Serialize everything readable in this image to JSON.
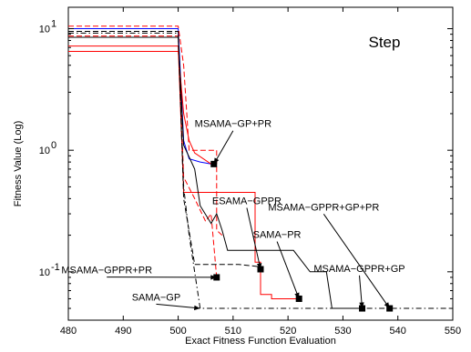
{
  "chart_data": {
    "type": "line",
    "title": "",
    "xlabel": "Exact Fitness Function Evaluation",
    "ylabel": "Fitness Value (Log)",
    "xlim": [
      480,
      550
    ],
    "ylim": [
      0.04,
      15
    ],
    "yscale": "log",
    "grid": false,
    "legend": "none",
    "x_ticks": [
      "480",
      "490",
      "500",
      "510",
      "520",
      "530",
      "540",
      "550"
    ],
    "y_tick_values": [
      0.1,
      1,
      10
    ],
    "y_tick_labels": [
      {
        "base": "10",
        "exp": "-1"
      },
      {
        "base": "10",
        "exp": "0"
      },
      {
        "base": "10",
        "exp": "1"
      }
    ],
    "panel_label": "Step",
    "series": [
      {
        "color": "#0000ff",
        "dash": "solid",
        "points": [
          [
            480,
            10.0
          ],
          [
            500,
            10.0
          ],
          [
            501,
            1.2
          ],
          [
            502,
            0.85
          ],
          [
            504,
            0.8
          ],
          [
            506,
            0.77
          ]
        ]
      },
      {
        "color": "#ff0000",
        "dash": "solid",
        "points": [
          [
            480,
            6.5
          ],
          [
            500,
            6.5
          ],
          [
            501,
            2.0
          ],
          [
            502,
            1.2
          ],
          [
            503,
            0.95
          ],
          [
            506,
            0.77
          ]
        ]
      },
      {
        "color": "#ff0000",
        "dash": "dashed",
        "points": [
          [
            480,
            10.5
          ],
          [
            500,
            10.5
          ],
          [
            501,
            5.0
          ],
          [
            502,
            1.0
          ],
          [
            507,
            1.0
          ],
          [
            507,
            0.22
          ],
          [
            508,
            0.2
          ]
        ]
      },
      {
        "color": "#ff0000",
        "dash": "dashed",
        "points": [
          [
            480,
            8.7
          ],
          [
            500,
            8.7
          ],
          [
            501,
            0.6
          ],
          [
            503,
            0.4
          ],
          [
            505,
            0.26
          ],
          [
            506,
            0.3
          ],
          [
            507,
            0.09
          ]
        ]
      },
      {
        "color": "#ff0000",
        "dash": "solid",
        "points": [
          [
            480,
            7.2
          ],
          [
            500,
            7.2
          ],
          [
            501,
            0.45
          ],
          [
            509,
            0.45
          ],
          [
            514,
            0.45
          ],
          [
            514,
            0.12
          ],
          [
            515,
            0.12
          ],
          [
            515,
            0.065
          ],
          [
            517,
            0.065
          ],
          [
            517,
            0.06
          ],
          [
            522,
            0.06
          ]
        ]
      },
      {
        "color": "#000000",
        "dash": "solid",
        "points": [
          [
            480,
            8.5
          ],
          [
            500,
            8.5
          ],
          [
            501,
            1.1
          ],
          [
            503,
            0.7
          ],
          [
            504,
            0.35
          ],
          [
            506,
            0.25
          ],
          [
            507,
            0.3
          ],
          [
            508,
            0.22
          ],
          [
            509,
            0.15
          ],
          [
            521,
            0.15
          ],
          [
            524,
            0.1
          ],
          [
            527,
            0.1
          ],
          [
            528,
            0.05
          ],
          [
            533,
            0.05
          ]
        ]
      },
      {
        "color": "#000000",
        "dash": "dashed",
        "points": [
          [
            480,
            9.5
          ],
          [
            500,
            9.5
          ],
          [
            501,
            0.4
          ],
          [
            503,
            0.115
          ],
          [
            511,
            0.115
          ],
          [
            515,
            0.11
          ]
        ]
      },
      {
        "color": "#000000",
        "dash": "dashdot",
        "points": [
          [
            480,
            9.2
          ],
          [
            500,
            9.2
          ],
          [
            501,
            0.5
          ],
          [
            502,
            0.2
          ],
          [
            504,
            0.05
          ],
          [
            550,
            0.05
          ]
        ]
      }
    ],
    "markers": [
      {
        "x": 506.5,
        "y": 0.77
      },
      {
        "x": 507,
        "y": 0.09
      },
      {
        "x": 515,
        "y": 0.105
      },
      {
        "x": 522,
        "y": 0.06
      },
      {
        "x": 533.5,
        "y": 0.05
      },
      {
        "x": 538.5,
        "y": 0.05
      }
    ],
    "annotations": [
      {
        "text": "MSAMA−GP+PR",
        "tx": 510,
        "ty": 1.55,
        "ax": 506.5,
        "ay": 0.77
      },
      {
        "text": "ESAMA−GPPR",
        "tx": 512.5,
        "ty": 0.36,
        "ax": 515,
        "ay": 0.105
      },
      {
        "text": "MSAMA−GPPR+GP+PR",
        "tx": 526.5,
        "ty": 0.32,
        "ax": 538.5,
        "ay": 0.05
      },
      {
        "text": "SAMA−PR",
        "tx": 518,
        "ty": 0.19,
        "ax": 522,
        "ay": 0.06
      },
      {
        "text": "MSAMA−GPPR+GP",
        "tx": 533,
        "ty": 0.1,
        "ax": 533.5,
        "ay": 0.05
      },
      {
        "text": "MSAMA−GPPR+PR",
        "tx": 487,
        "ty": 0.097,
        "ax": 507,
        "ay": 0.09
      },
      {
        "text": "SAMA−GP",
        "tx": 496,
        "ty": 0.058,
        "ax": 504,
        "ay": 0.05
      }
    ]
  }
}
